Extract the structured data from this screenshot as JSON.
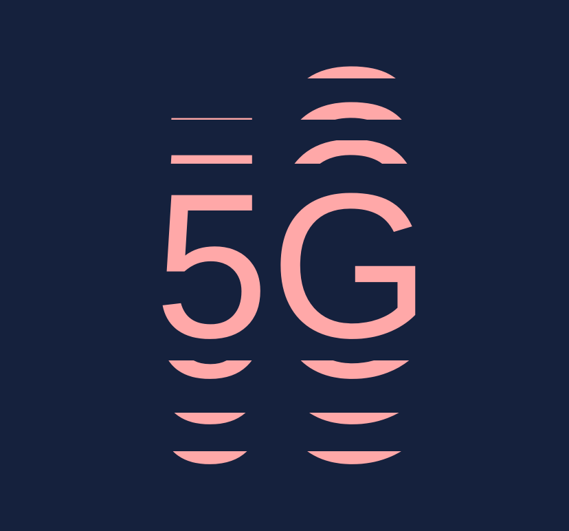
{
  "logo": {
    "text": "5G",
    "digit": "5",
    "letter": "G",
    "background_color": "#15213d",
    "glyph_color": "#ffa8a8"
  }
}
